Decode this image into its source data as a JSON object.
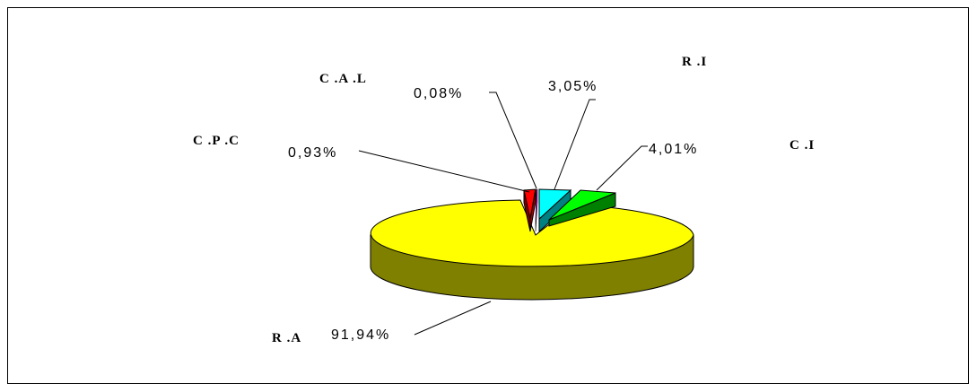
{
  "chart_data": {
    "type": "pie",
    "style": "3d-exploded",
    "slices": [
      {
        "category": "R.A",
        "category_label": "R .A",
        "value": 91.94,
        "label": "91,94%",
        "color": "#ffff00",
        "side_color": "#808000"
      },
      {
        "category": "C.P.C",
        "category_label": "C .P .C",
        "value": 0.93,
        "label": "0,93%",
        "color": "#ff0000",
        "side_color": "#800000"
      },
      {
        "category": "C.A.L",
        "category_label": "C .A .L",
        "value": 0.08,
        "label": "0,08%",
        "color": "#ff00ff",
        "side_color": "#800080"
      },
      {
        "category": "R.I",
        "category_label": "R .I",
        "value": 3.05,
        "label": "3,05%",
        "color": "#00ffff",
        "side_color": "#008080"
      },
      {
        "category": "C.I",
        "category_label": "C .I",
        "value": 4.01,
        "label": "4,01%",
        "color": "#00ff00",
        "side_color": "#008000"
      }
    ]
  }
}
